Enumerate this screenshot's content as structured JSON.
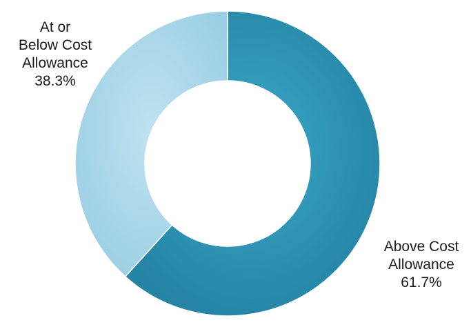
{
  "chart_data": {
    "type": "pie",
    "style": "donut",
    "title": "",
    "slices": [
      {
        "label_lines": [
          "Above Cost",
          "Allowance",
          "61.7%"
        ],
        "category": "Above Cost Allowance",
        "value": 61.7,
        "color": "#2b93b4"
      },
      {
        "label_lines": [
          "At or",
          "Below Cost",
          "Allowance",
          "38.3%"
        ],
        "category": "At or Below Cost Allowance",
        "value": 38.3,
        "color": "#a8d6e8"
      }
    ],
    "legend": "none"
  }
}
